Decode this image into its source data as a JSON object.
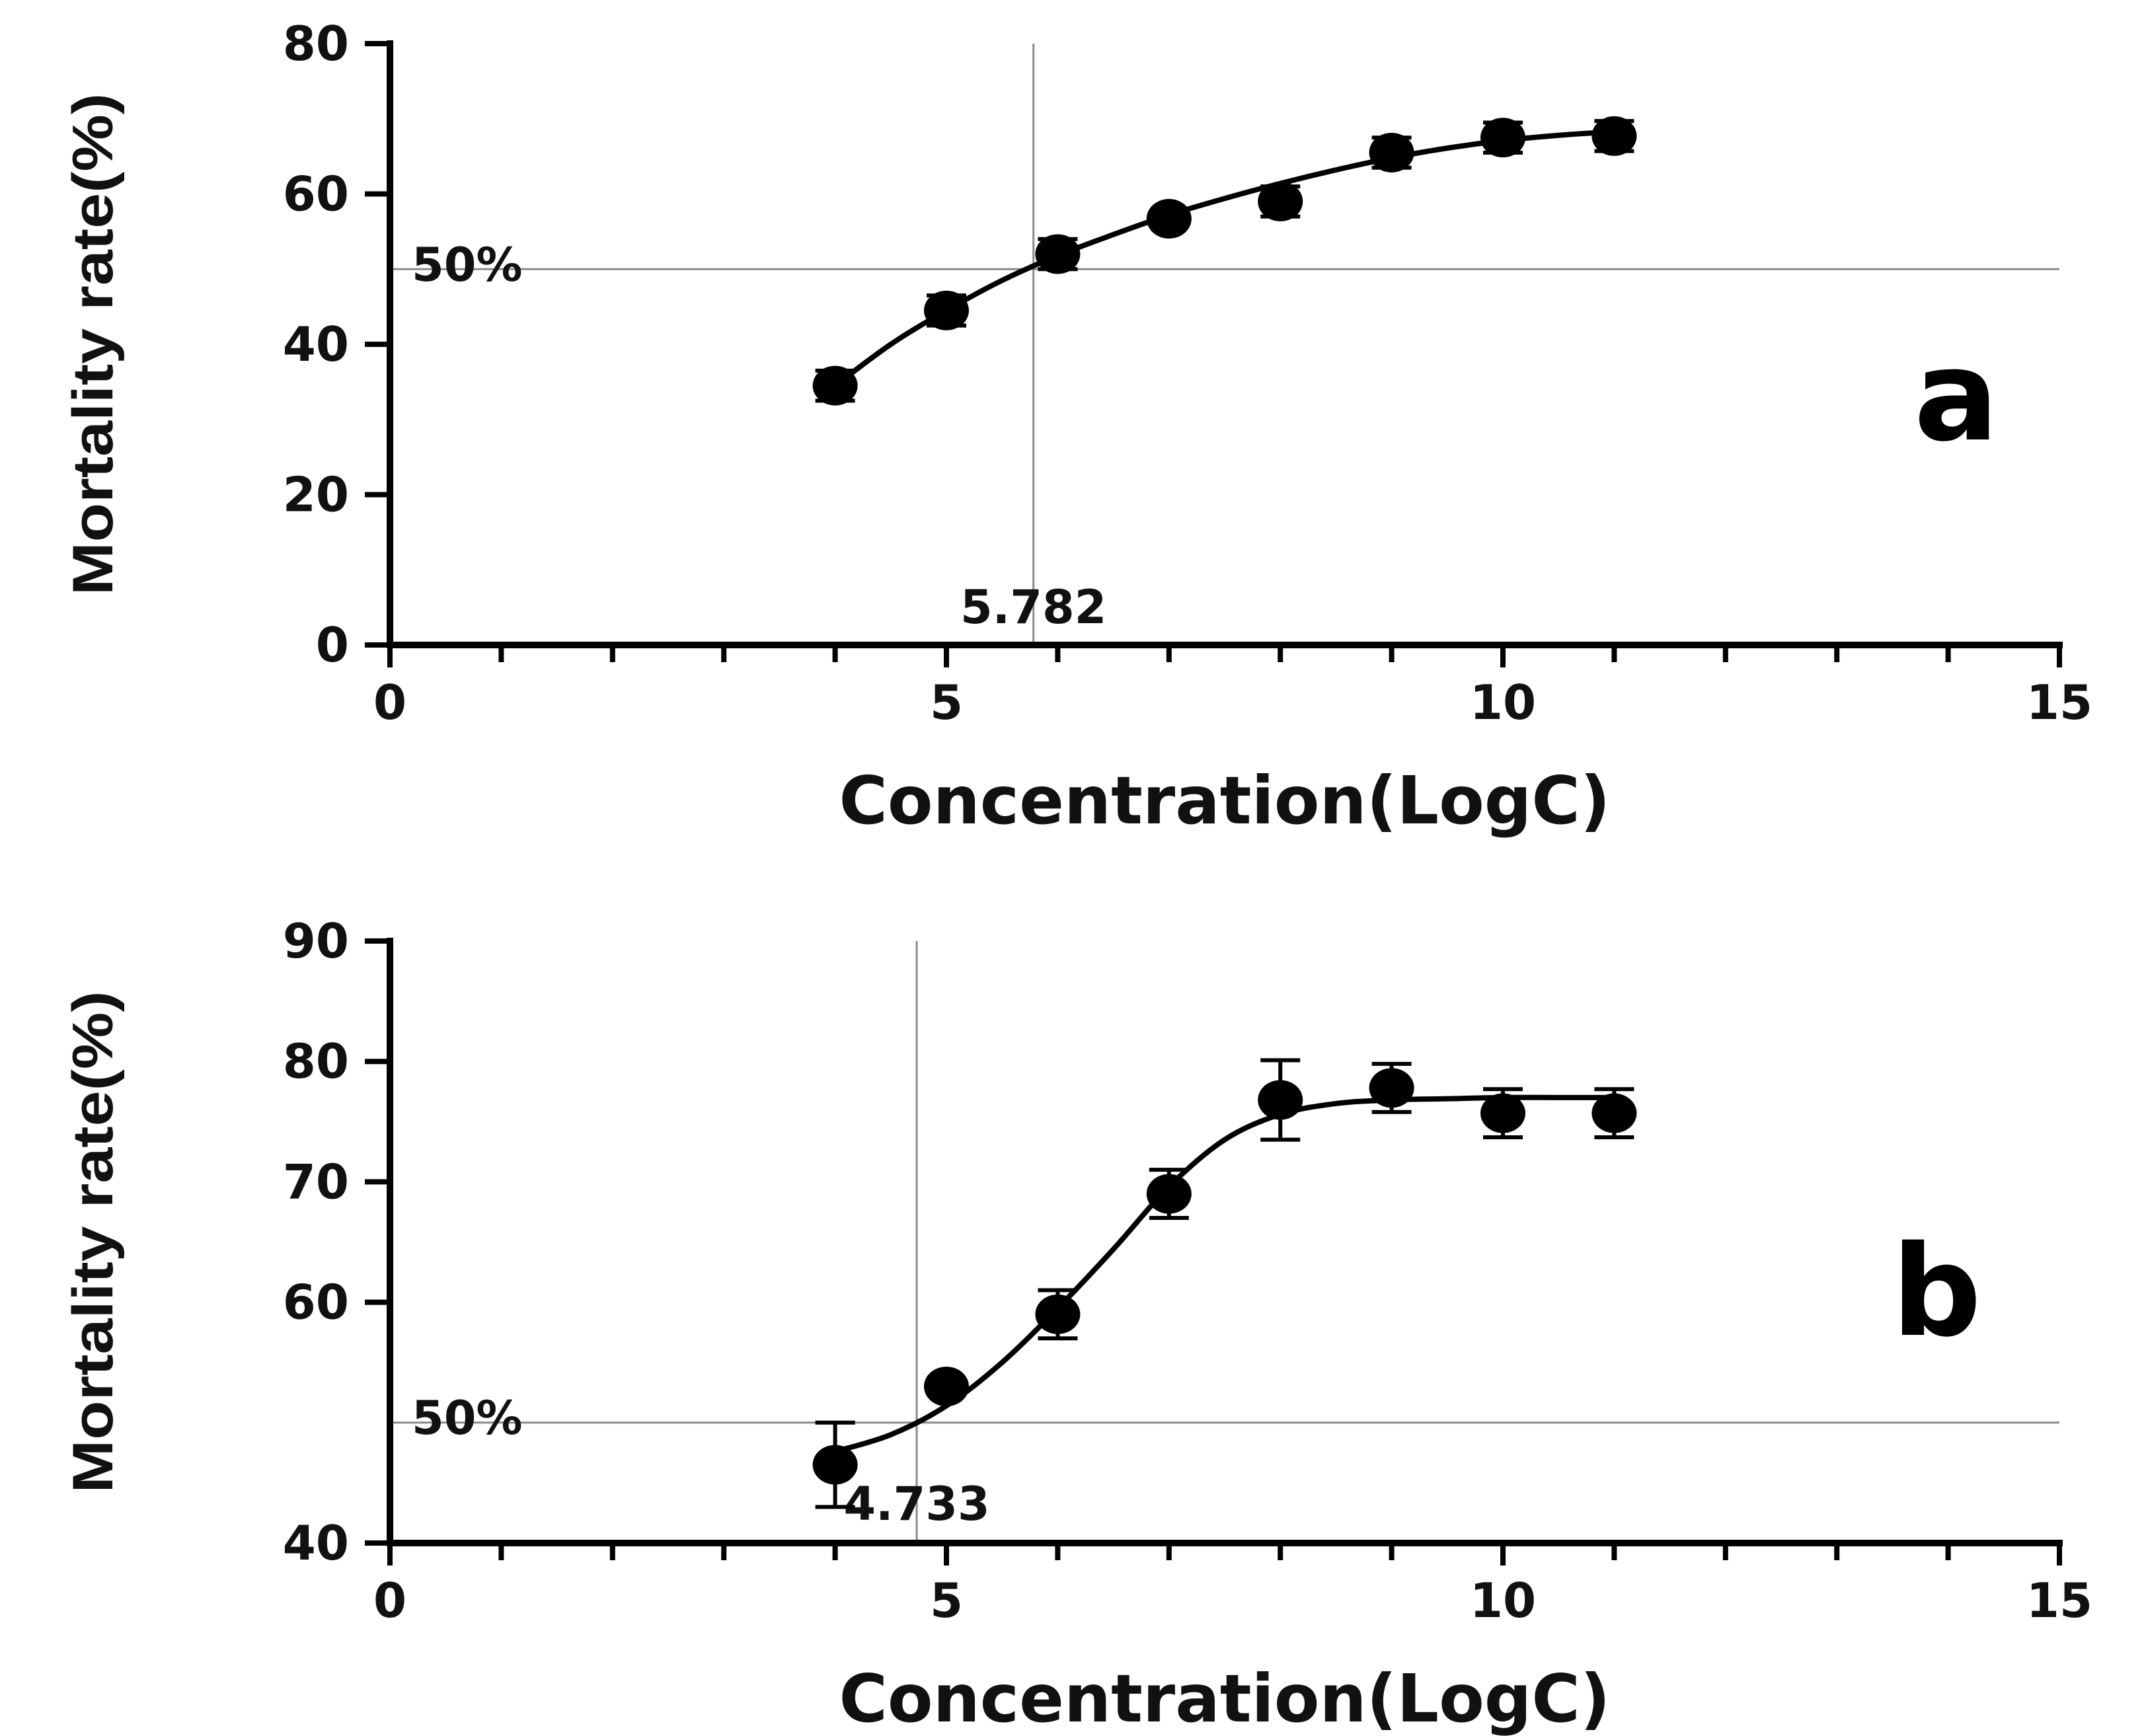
{
  "chart_data": [
    {
      "type": "scatter",
      "panel_label": "a",
      "xlabel": "Concentration(LogC)",
      "ylabel": "Mortality rate(%)",
      "xlim": [
        0,
        15
      ],
      "ylim": [
        0,
        80
      ],
      "x_ticks": [
        0,
        5,
        10,
        15
      ],
      "y_ticks": [
        0,
        20,
        40,
        60,
        80
      ],
      "grid": false,
      "x": [
        4,
        5,
        6,
        7,
        8,
        9,
        10,
        11
      ],
      "values": [
        34.5,
        44.5,
        52,
        56.7,
        59,
        65.5,
        67.5,
        67.7
      ],
      "error": [
        2,
        2,
        2,
        0.8,
        2,
        2,
        2,
        2
      ],
      "fit": {
        "x": [
          4,
          4.5,
          5,
          5.5,
          6,
          6.5,
          7,
          7.5,
          8,
          8.5,
          9,
          9.5,
          10,
          10.5,
          11
        ],
        "y": [
          34.5,
          40,
          44.5,
          48.5,
          51.8,
          54.6,
          57.2,
          59.4,
          61.4,
          63.2,
          64.8,
          66.1,
          67.1,
          67.8,
          68.3
        ]
      },
      "hline": {
        "y": 50,
        "label": "50%"
      },
      "vline": {
        "x": 5.782,
        "label": "5.782"
      }
    },
    {
      "type": "scatter",
      "panel_label": "b",
      "xlabel": "Concentration(LogC)",
      "ylabel": "Mortality rate(%)",
      "xlim": [
        0,
        15
      ],
      "ylim": [
        40,
        90
      ],
      "x_ticks": [
        0,
        5,
        10,
        15
      ],
      "y_ticks": [
        40,
        60,
        70,
        80,
        90
      ],
      "grid": false,
      "x": [
        4,
        5,
        6,
        7,
        8,
        9,
        10,
        11
      ],
      "values": [
        46.5,
        53,
        59,
        69,
        76.8,
        77.8,
        75.7,
        75.7
      ],
      "error": [
        3.5,
        0.5,
        2,
        2,
        3.3,
        2,
        2,
        2
      ],
      "fit": {
        "x": [
          4,
          4.5,
          5,
          5.5,
          6,
          6.5,
          7,
          7.5,
          8,
          8.5,
          9,
          9.5,
          10,
          10.5,
          11
        ],
        "y": [
          47.6,
          49,
          51.4,
          55,
          59.5,
          64.4,
          69.6,
          73.5,
          75.6,
          76.5,
          76.8,
          76.9,
          77,
          77,
          77
        ]
      },
      "hline": {
        "y": 50,
        "label": "50%"
      },
      "vline": {
        "x": 4.733,
        "label": "4.733"
      }
    }
  ]
}
